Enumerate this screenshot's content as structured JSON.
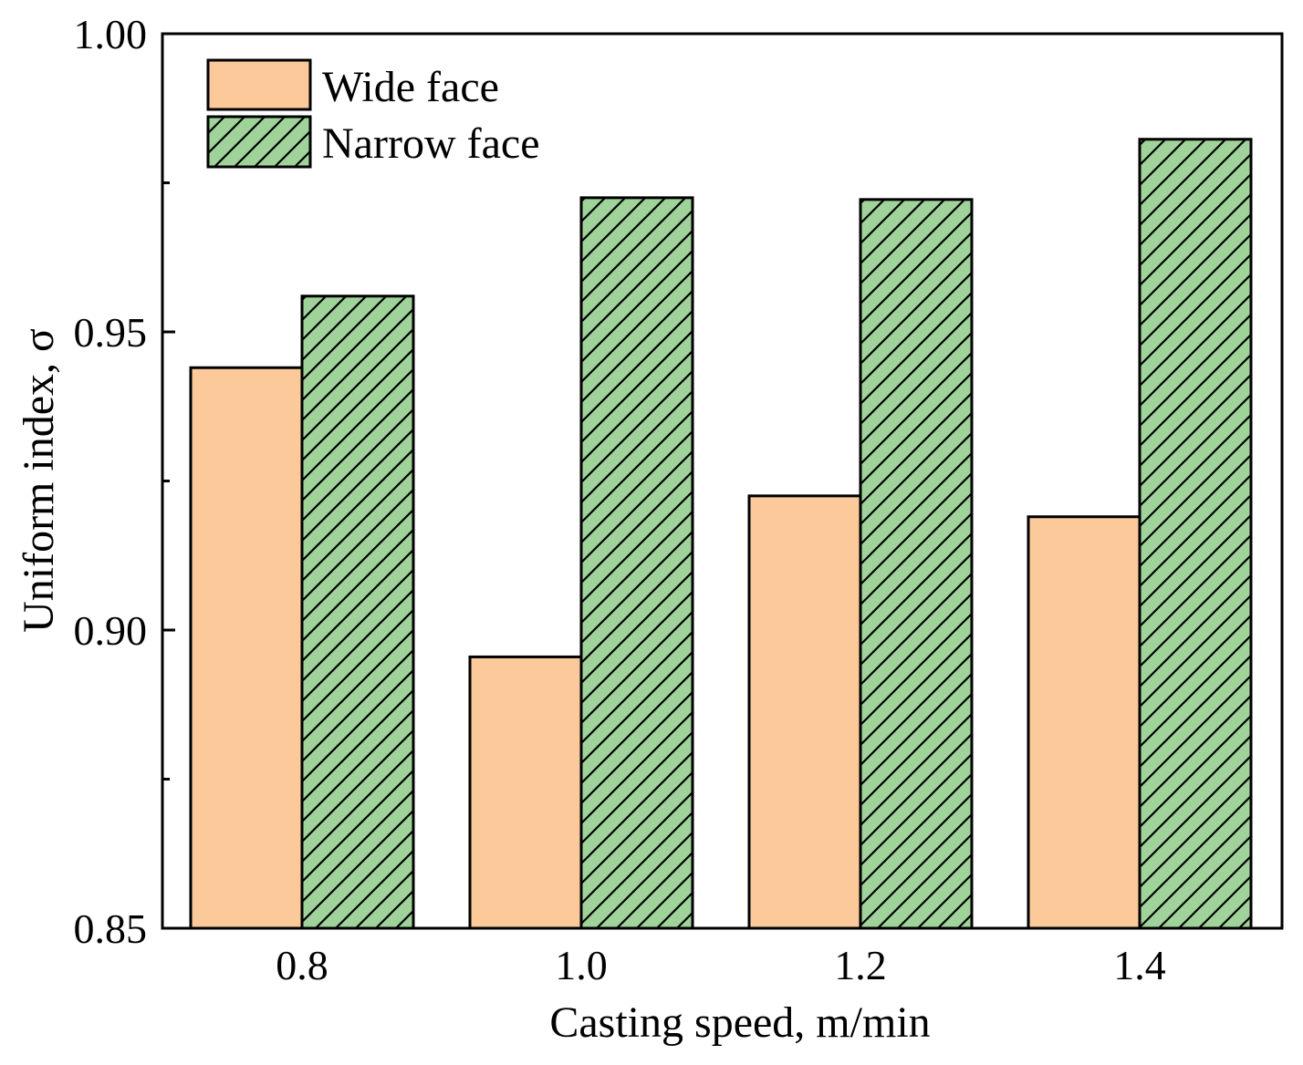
{
  "chart_data": {
    "type": "bar",
    "title": "",
    "xlabel": "Casting speed, m/min",
    "ylabel": "Uniform index, σ",
    "categories": [
      "0.8",
      "1.0",
      "1.2",
      "1.4"
    ],
    "ylim": [
      0.85,
      1.0
    ],
    "yticks": [
      "0.85",
      "0.90",
      "0.95",
      "1.00"
    ],
    "grid": false,
    "legend_position": "top-left",
    "series": [
      {
        "name": "Wide face",
        "color": "#fbc99a",
        "pattern": "solid",
        "values": [
          0.944,
          0.8955,
          0.9225,
          0.919
        ]
      },
      {
        "name": "Narrow face",
        "color": "#9fd39a",
        "pattern": "diagonal-hatch",
        "values": [
          0.956,
          0.9725,
          0.9722,
          0.9823
        ]
      }
    ]
  }
}
